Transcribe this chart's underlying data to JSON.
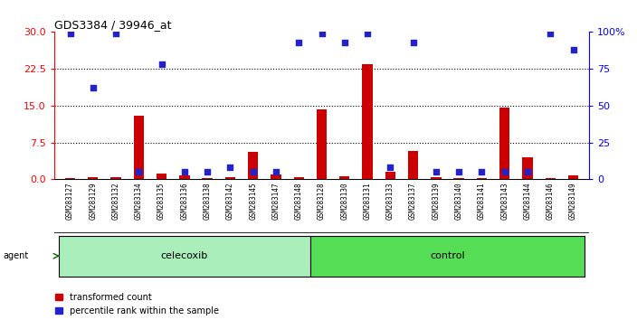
{
  "title": "GDS3384 / 39946_at",
  "samples": [
    "GSM283127",
    "GSM283129",
    "GSM283132",
    "GSM283134",
    "GSM283135",
    "GSM283136",
    "GSM283138",
    "GSM283142",
    "GSM283145",
    "GSM283147",
    "GSM283148",
    "GSM283128",
    "GSM283130",
    "GSM283131",
    "GSM283133",
    "GSM283137",
    "GSM283139",
    "GSM283140",
    "GSM283141",
    "GSM283143",
    "GSM283144",
    "GSM283146",
    "GSM283149"
  ],
  "transformed_count": [
    0.3,
    0.4,
    0.5,
    13.0,
    1.2,
    0.8,
    0.3,
    0.4,
    5.5,
    0.9,
    0.5,
    14.2,
    0.6,
    23.5,
    1.5,
    5.8,
    0.4,
    0.3,
    0.3,
    14.6,
    4.5,
    0.3,
    0.7
  ],
  "percentile_rank": [
    99,
    62,
    99,
    5,
    78,
    5,
    5,
    8,
    5,
    5,
    93,
    99,
    93,
    99,
    8,
    93,
    5,
    5,
    5,
    5,
    5,
    99,
    88
  ],
  "celecoxib_count": 11,
  "control_count": 12,
  "ylim_left": [
    0,
    30
  ],
  "ylim_right": [
    0,
    100
  ],
  "yticks_left": [
    0,
    7.5,
    15,
    22.5,
    30
  ],
  "yticks_right": [
    0,
    25,
    50,
    75,
    100
  ],
  "bar_color_red": "#cc0000",
  "bar_color_blue": "#2222cc",
  "celecoxib_color": "#aaeebb",
  "control_color": "#55dd55",
  "agent_label_color": "#006600",
  "xtick_bg_color": "#c8c8c8",
  "plot_bg": "#ffffff",
  "legend_red_label": "transformed count",
  "legend_blue_label": "percentile rank within the sample"
}
